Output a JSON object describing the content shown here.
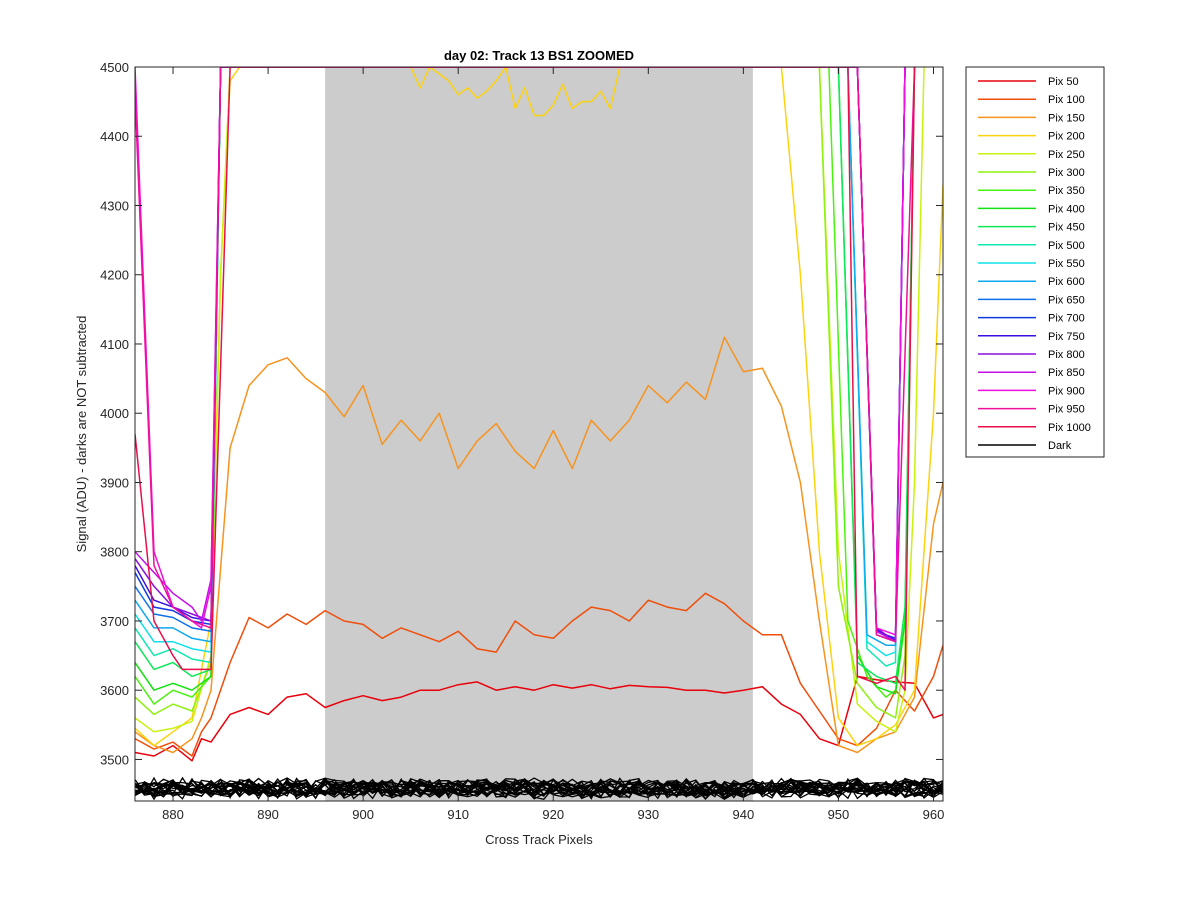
{
  "chart_data": {
    "type": "line",
    "title": "day 02: Track 13  BS1 ZOOMED",
    "xlabel": "Cross Track Pixels",
    "ylabel": "Signal (ADU) - darks are NOT subtracted",
    "xlim": [
      876,
      961
    ],
    "ylim": [
      3440,
      4500
    ],
    "xticks": [
      880,
      890,
      900,
      910,
      920,
      930,
      940,
      950,
      960
    ],
    "yticks": [
      3500,
      3600,
      3700,
      3800,
      3900,
      4000,
      4100,
      4200,
      4300,
      4400,
      4500
    ],
    "shaded_region": {
      "x_start": 896,
      "x_end": 941,
      "color": "#cccccc"
    },
    "grid": false,
    "legend_position": "outside-right",
    "series": [
      {
        "name": "Pix 50",
        "color": "#e8000b",
        "x": [
          876,
          878,
          880,
          882,
          883,
          884,
          886,
          888,
          890,
          892,
          894,
          896,
          898,
          900,
          902,
          904,
          906,
          908,
          910,
          912,
          914,
          916,
          918,
          920,
          922,
          924,
          926,
          928,
          930,
          932,
          934,
          936,
          938,
          940,
          942,
          944,
          946,
          948,
          950,
          952,
          954,
          956,
          958,
          960,
          961
        ],
        "y": [
          3510,
          3505,
          3520,
          3498,
          3530,
          3525,
          3565,
          3575,
          3565,
          3590,
          3595,
          3575,
          3585,
          3592,
          3585,
          3590,
          3600,
          3600,
          3608,
          3612,
          3600,
          3605,
          3600,
          3608,
          3603,
          3608,
          3602,
          3607,
          3605,
          3604,
          3600,
          3600,
          3596,
          3600,
          3605,
          3580,
          3565,
          3530,
          3520,
          3620,
          3615,
          3612,
          3610,
          3560,
          3565
        ]
      },
      {
        "name": "Pix 100",
        "color": "#f04e0a",
        "x": [
          876,
          878,
          880,
          882,
          883,
          884,
          886,
          888,
          890,
          892,
          894,
          896,
          898,
          900,
          902,
          904,
          906,
          908,
          910,
          912,
          914,
          916,
          918,
          920,
          922,
          924,
          926,
          928,
          930,
          932,
          934,
          936,
          938,
          940,
          942,
          944,
          946,
          948,
          950,
          952,
          954,
          956,
          958,
          960,
          961
        ],
        "y": [
          3530,
          3515,
          3525,
          3505,
          3540,
          3560,
          3640,
          3705,
          3690,
          3710,
          3695,
          3715,
          3700,
          3695,
          3675,
          3690,
          3680,
          3670,
          3685,
          3660,
          3655,
          3700,
          3680,
          3675,
          3700,
          3720,
          3715,
          3700,
          3730,
          3720,
          3715,
          3740,
          3725,
          3700,
          3680,
          3680,
          3610,
          3570,
          3530,
          3520,
          3545,
          3600,
          3570,
          3620,
          3665
        ]
      },
      {
        "name": "Pix 150",
        "color": "#f7931e",
        "x": [
          876,
          878,
          880,
          882,
          883,
          884,
          886,
          888,
          890,
          892,
          894,
          896,
          898,
          900,
          902,
          904,
          906,
          908,
          910,
          912,
          914,
          916,
          918,
          920,
          922,
          924,
          926,
          928,
          930,
          932,
          934,
          936,
          938,
          940,
          942,
          944,
          946,
          948,
          950,
          952,
          954,
          956,
          958,
          960,
          961
        ],
        "y": [
          3540,
          3520,
          3510,
          3530,
          3560,
          3600,
          3950,
          4040,
          4070,
          4080,
          4050,
          4030,
          3995,
          4040,
          3955,
          3990,
          3960,
          4000,
          3920,
          3960,
          3985,
          3945,
          3920,
          3975,
          3920,
          3990,
          3960,
          3990,
          4040,
          4015,
          4045,
          4020,
          4110,
          4060,
          4065,
          4010,
          3900,
          3700,
          3520,
          3510,
          3530,
          3540,
          3590,
          3840,
          3900
        ]
      },
      {
        "name": "Pix 200",
        "color": "#fdd20e",
        "x": [
          876,
          878,
          880,
          882,
          884,
          885,
          886,
          887,
          888,
          905,
          906,
          907,
          908,
          909,
          910,
          911,
          912,
          913,
          914,
          915,
          916,
          917,
          918,
          919,
          920,
          921,
          922,
          923,
          924,
          925,
          926,
          927,
          944,
          946,
          948,
          950,
          952,
          954,
          956,
          958,
          960,
          961
        ],
        "y": [
          3545,
          3520,
          3540,
          3560,
          3700,
          4200,
          4480,
          4500,
          4500,
          4500,
          4470,
          4500,
          4490,
          4480,
          4460,
          4470,
          4455,
          4465,
          4480,
          4500,
          4440,
          4470,
          4430,
          4430,
          4445,
          4475,
          4440,
          4450,
          4450,
          4465,
          4440,
          4500,
          4500,
          4200,
          3800,
          3560,
          3520,
          3530,
          3550,
          3600,
          4000,
          4330
        ]
      },
      {
        "name": "Pix 250",
        "color": "#c8f20f",
        "x": [
          876,
          878,
          880,
          882,
          884,
          885,
          886,
          948,
          950,
          952,
          954,
          956,
          957,
          958,
          959
        ],
        "y": [
          3560,
          3540,
          3545,
          3555,
          3650,
          4200,
          4500,
          4500,
          3800,
          3580,
          3555,
          3540,
          3600,
          3900,
          4500
        ]
      },
      {
        "name": "Pix 300",
        "color": "#8df20f",
        "x": [
          876,
          878,
          880,
          882,
          884,
          885,
          948,
          950,
          952,
          954,
          956,
          957,
          958
        ],
        "y": [
          3590,
          3565,
          3580,
          3570,
          3640,
          4500,
          4500,
          3750,
          3610,
          3575,
          3560,
          3650,
          4500
        ]
      },
      {
        "name": "Pix 350",
        "color": "#4af20f",
        "x": [
          876,
          878,
          880,
          882,
          884,
          885,
          949,
          951,
          953,
          955,
          956,
          957,
          958
        ],
        "y": [
          3620,
          3580,
          3600,
          3590,
          3620,
          4500,
          4500,
          3700,
          3620,
          3590,
          3600,
          3700,
          4500
        ]
      },
      {
        "name": "Pix 400",
        "color": "#12e20f",
        "x": [
          876,
          878,
          880,
          882,
          884,
          885,
          950,
          952,
          954,
          956,
          957,
          958
        ],
        "y": [
          3640,
          3600,
          3610,
          3600,
          3620,
          4500,
          4500,
          3650,
          3605,
          3595,
          3700,
          4500
        ]
      },
      {
        "name": "Pix 450",
        "color": "#0fe85a",
        "x": [
          876,
          878,
          880,
          882,
          884,
          885,
          950,
          952,
          954,
          956,
          957,
          958
        ],
        "y": [
          3670,
          3630,
          3640,
          3620,
          3630,
          4500,
          4500,
          3640,
          3620,
          3610,
          3720,
          4500
        ]
      },
      {
        "name": "Pix 500",
        "color": "#0fe8b0",
        "x": [
          876,
          878,
          880,
          882,
          884,
          885,
          951,
          953,
          955,
          956,
          957
        ],
        "y": [
          3690,
          3650,
          3660,
          3645,
          3640,
          4500,
          4500,
          3660,
          3635,
          3640,
          4500
        ]
      },
      {
        "name": "Pix 550",
        "color": "#0fe0ea",
        "x": [
          876,
          878,
          880,
          882,
          884,
          885,
          951,
          953,
          955,
          956,
          957
        ],
        "y": [
          3710,
          3670,
          3670,
          3660,
          3655,
          4500,
          4500,
          3670,
          3650,
          3655,
          4500
        ]
      },
      {
        "name": "Pix 600",
        "color": "#0fa8ef",
        "x": [
          876,
          878,
          880,
          882,
          884,
          885,
          951,
          953,
          955,
          956,
          957
        ],
        "y": [
          3730,
          3690,
          3690,
          3675,
          3670,
          4500,
          4500,
          3680,
          3665,
          3665,
          4500
        ]
      },
      {
        "name": "Pix 650",
        "color": "#0f70e8",
        "x": [
          876,
          878,
          880,
          882,
          884,
          885,
          952,
          954,
          956,
          957
        ],
        "y": [
          3750,
          3710,
          3705,
          3690,
          3685,
          4500,
          4500,
          3680,
          3670,
          4500
        ]
      },
      {
        "name": "Pix 700",
        "color": "#0f3ae0",
        "x": [
          876,
          878,
          880,
          882,
          884,
          885,
          952,
          954,
          956,
          957
        ],
        "y": [
          3770,
          3720,
          3715,
          3700,
          3695,
          4500,
          4500,
          3685,
          3675,
          4500
        ]
      },
      {
        "name": "Pix 750",
        "color": "#3a0fe0",
        "x": [
          876,
          878,
          880,
          882,
          884,
          885,
          952,
          954,
          956,
          957
        ],
        "y": [
          3780,
          3730,
          3720,
          3705,
          3700,
          4500,
          4500,
          3688,
          3672,
          4500
        ]
      },
      {
        "name": "Pix 800",
        "color": "#8a0fe0",
        "x": [
          876,
          878,
          880,
          882,
          884,
          885,
          952,
          954,
          956,
          957
        ],
        "y": [
          3790,
          3750,
          3720,
          3710,
          3700,
          4500,
          4500,
          3690,
          3670,
          4500
        ]
      },
      {
        "name": "Pix 850",
        "color": "#c40fe8",
        "x": [
          876,
          878,
          880,
          882,
          883,
          884,
          885,
          952,
          954,
          956,
          957
        ],
        "y": [
          3800,
          3770,
          3740,
          3720,
          3700,
          3760,
          4500,
          4500,
          3685,
          3670,
          4500
        ]
      },
      {
        "name": "Pix 900",
        "color": "#ef0fe0",
        "x": [
          876,
          878,
          880,
          882,
          883,
          884,
          885,
          952,
          954,
          956,
          957
        ],
        "y": [
          4500,
          3800,
          3720,
          3700,
          3690,
          3750,
          4500,
          4500,
          3690,
          3680,
          4500
        ]
      },
      {
        "name": "Pix 950",
        "color": "#ef0f9a",
        "x": [
          876,
          878,
          880,
          882,
          884,
          885,
          952,
          954,
          956,
          958
        ],
        "y": [
          4460,
          3780,
          3720,
          3700,
          3690,
          4500,
          4500,
          3680,
          3670,
          4500
        ]
      },
      {
        "name": "Pix 1000",
        "color": "#ea0f4a",
        "x": [
          876,
          878,
          880,
          881,
          884,
          886,
          951,
          952,
          954,
          956,
          957,
          958
        ],
        "y": [
          3970,
          3700,
          3650,
          3630,
          3630,
          4500,
          4500,
          3620,
          3610,
          3620,
          3600,
          4500
        ]
      }
    ],
    "dark_series": {
      "name": "Dark",
      "color": "#000000",
      "count": 20,
      "x_start": 876,
      "x_end": 961,
      "mean": 3458,
      "spread": 12
    }
  }
}
